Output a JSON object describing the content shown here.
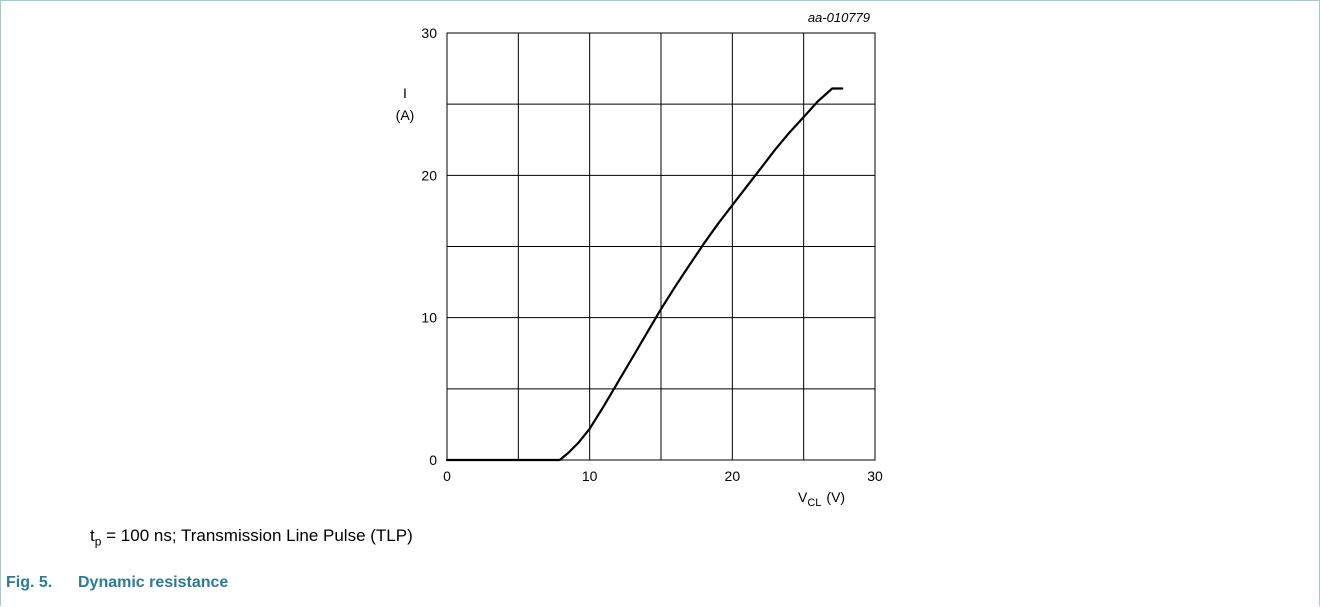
{
  "chart_data": {
    "type": "line",
    "code": "aa-010779",
    "xlabel": {
      "main": "V",
      "sub": "CL",
      "unit": "(V)"
    },
    "ylabel": {
      "main": "I",
      "unit": "(A)"
    },
    "xlim": [
      0,
      30
    ],
    "ylim": [
      0,
      30
    ],
    "xticks": [
      0,
      10,
      20,
      30
    ],
    "yticks": [
      0,
      10,
      20,
      30
    ],
    "x_grid_step": 5,
    "y_grid_step": 5,
    "grid": true,
    "series": [
      {
        "x": [
          0,
          2,
          4,
          6,
          7.9,
          8.5,
          9.2,
          10,
          11,
          12,
          13,
          14,
          15,
          16,
          17,
          18,
          19,
          20,
          21,
          22,
          23,
          24,
          25,
          26,
          27,
          27.7
        ],
        "y": [
          0,
          0,
          0,
          0,
          0,
          0.5,
          1.2,
          2.2,
          3.8,
          5.5,
          7.2,
          8.9,
          10.6,
          12.2,
          13.7,
          15.2,
          16.6,
          17.9,
          19.2,
          20.5,
          21.8,
          23.0,
          24.1,
          25.2,
          26.1,
          26.1
        ]
      }
    ],
    "colors": {
      "line": "#000000",
      "grid": "#000000"
    }
  },
  "caption": {
    "t": "t",
    "t_sub": "p",
    "text": " = 100 ns; Transmission Line Pulse (TLP)"
  },
  "figure": {
    "number": "Fig. 5.",
    "title": "Dynamic resistance"
  }
}
